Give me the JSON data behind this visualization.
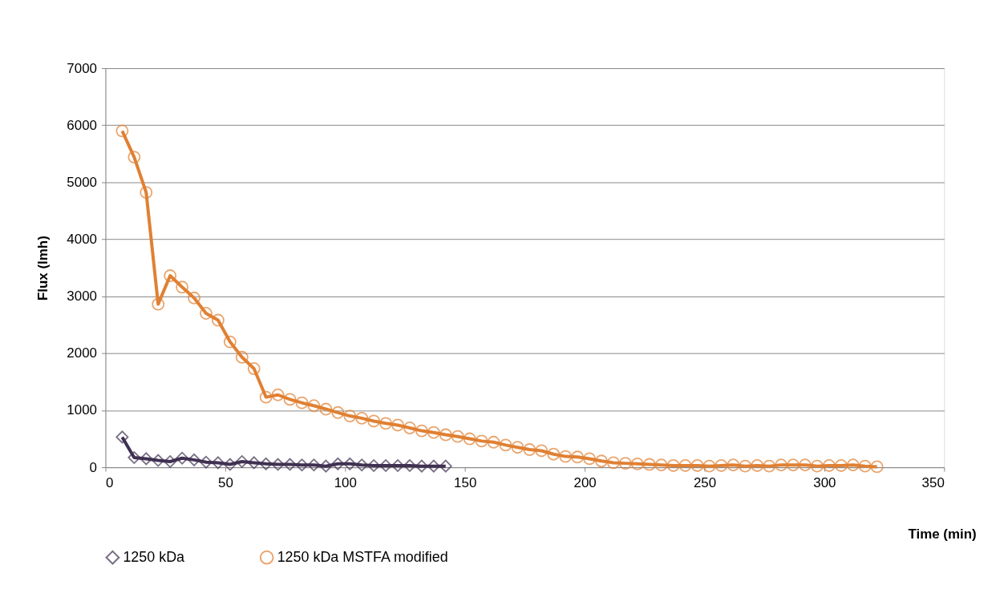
{
  "chart_data": {
    "type": "line",
    "xlabel": "Time (min)",
    "ylabel": "Flux (lmh)",
    "xlim": [
      0,
      350
    ],
    "xticks": [
      0,
      50,
      100,
      150,
      200,
      250,
      300,
      350
    ],
    "ylim": [
      0,
      7000
    ],
    "yticks": [
      0,
      1000,
      2000,
      3000,
      4000,
      5000,
      6000,
      7000
    ],
    "grid": "y",
    "legend": "bottom",
    "line_style": "solid",
    "series": [
      {
        "name": "1250 kDa",
        "color": "#403152",
        "marker": "diamond",
        "x": [
          7,
          12,
          17,
          22,
          27,
          32,
          37,
          42,
          47,
          52,
          57,
          62,
          67,
          72,
          77,
          82,
          87,
          92,
          97,
          102,
          107,
          112,
          117,
          122,
          127,
          132,
          137,
          142
        ],
        "values": [
          530,
          170,
          150,
          120,
          100,
          160,
          130,
          90,
          80,
          50,
          100,
          80,
          60,
          50,
          50,
          40,
          40,
          20,
          60,
          60,
          40,
          30,
          30,
          30,
          30,
          20,
          20,
          20
        ]
      },
      {
        "name": "1250 kDa MSTFA modified",
        "color": "#e08033",
        "marker": "circle",
        "x": [
          7,
          12,
          17,
          22,
          27,
          32,
          37,
          42,
          47,
          52,
          57,
          62,
          67,
          72,
          77,
          82,
          87,
          92,
          97,
          102,
          107,
          112,
          117,
          122,
          127,
          132,
          137,
          142,
          147,
          152,
          157,
          162,
          167,
          172,
          177,
          182,
          187,
          192,
          197,
          202,
          207,
          212,
          217,
          222,
          227,
          232,
          237,
          242,
          247,
          252,
          257,
          262,
          267,
          272,
          277,
          282,
          287,
          292,
          297,
          302,
          307,
          312,
          317,
          322
        ],
        "values": [
          5900,
          5440,
          4820,
          2860,
          3360,
          3160,
          2970,
          2700,
          2580,
          2200,
          1930,
          1730,
          1230,
          1270,
          1190,
          1130,
          1080,
          1020,
          960,
          900,
          860,
          810,
          770,
          740,
          690,
          640,
          610,
          570,
          540,
          500,
          460,
          440,
          390,
          350,
          310,
          290,
          230,
          190,
          180,
          150,
          110,
          80,
          70,
          60,
          50,
          40,
          30,
          30,
          30,
          20,
          30,
          40,
          20,
          30,
          20,
          40,
          40,
          40,
          20,
          30,
          30,
          40,
          20,
          10
        ]
      }
    ]
  }
}
